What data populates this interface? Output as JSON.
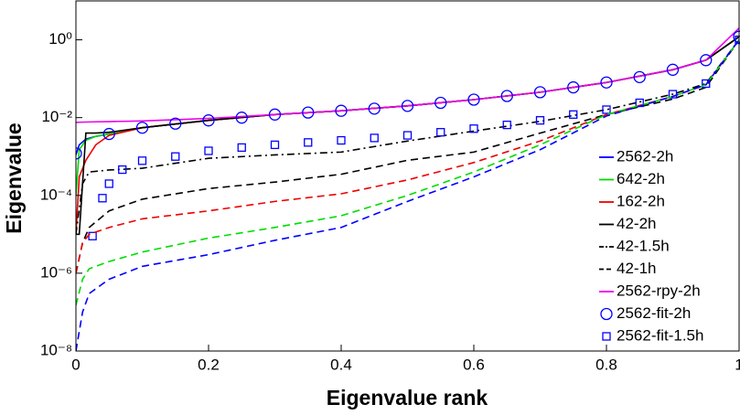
{
  "chart_data": {
    "type": "line",
    "xlabel": "Eigenvalue rank",
    "ylabel": "Eigenvalue",
    "xlim": [
      0,
      1
    ],
    "xticks": [
      0,
      0.2,
      0.4,
      0.6,
      0.8,
      1
    ],
    "ylim": [
      1e-08,
      10
    ],
    "yscale": "log",
    "yticks": [
      {
        "value": 1e-08,
        "label": "10⁻⁸"
      },
      {
        "value": 1e-06,
        "label": "10⁻⁶"
      },
      {
        "value": 0.0001,
        "label": "10⁻⁴"
      },
      {
        "value": 0.01,
        "label": "10⁻²"
      },
      {
        "value": 1,
        "label": "10⁰"
      }
    ],
    "legend": "right",
    "series": [
      {
        "name": "2562-2h",
        "color": "#0000ff",
        "style": "solid",
        "x": [
          0,
          0.005,
          0.015,
          0.03,
          0.05,
          0.1,
          0.2,
          0.3,
          0.4,
          0.5,
          0.6,
          0.7,
          0.8,
          0.9,
          0.95,
          1
        ],
        "values": [
          0.0011,
          0.002,
          0.0028,
          0.0033,
          0.0038,
          0.0055,
          0.0085,
          0.012,
          0.015,
          0.02,
          0.029,
          0.045,
          0.08,
          0.17,
          0.3,
          1.2
        ]
      },
      {
        "name": "642-2h",
        "color": "#00dd00",
        "style": "solid",
        "x": [
          0,
          0.005,
          0.015,
          0.03,
          0.05,
          0.1,
          0.2,
          0.3,
          0.4,
          0.5,
          0.6,
          0.7,
          0.8,
          0.9,
          0.95,
          1
        ],
        "values": [
          0.0001,
          0.0015,
          0.0026,
          0.0033,
          0.0038,
          0.0055,
          0.0085,
          0.012,
          0.015,
          0.02,
          0.029,
          0.045,
          0.08,
          0.17,
          0.3,
          1.2
        ]
      },
      {
        "name": "162-2h",
        "color": "#ee0000",
        "style": "solid",
        "x": [
          0,
          0.005,
          0.015,
          0.03,
          0.05,
          0.1,
          0.2,
          0.3,
          0.4,
          0.5,
          0.6,
          0.7,
          0.8,
          0.9,
          0.95,
          1
        ],
        "values": [
          1e-05,
          0.0003,
          0.0008,
          0.002,
          0.0035,
          0.0055,
          0.0085,
          0.012,
          0.015,
          0.02,
          0.029,
          0.045,
          0.08,
          0.17,
          0.3,
          1.2
        ]
      },
      {
        "name": "42-2h",
        "color": "#000000",
        "style": "solid",
        "x": [
          0,
          0.005,
          0.015,
          0.03,
          0.05,
          0.1,
          0.2,
          0.3,
          0.4,
          0.5,
          0.6,
          0.7,
          0.8,
          0.9,
          0.95,
          1
        ],
        "values": [
          1e-05,
          1e-05,
          0.004,
          0.004,
          0.0042,
          0.0055,
          0.0085,
          0.012,
          0.015,
          0.02,
          0.029,
          0.045,
          0.08,
          0.17,
          0.3,
          1.2
        ]
      },
      {
        "name": "42-1.5h",
        "color": "#000000",
        "style": "dashdot",
        "x": [
          0,
          0.01,
          0.02,
          0.05,
          0.1,
          0.2,
          0.3,
          0.4,
          0.5,
          0.6,
          0.7,
          0.8,
          0.9,
          0.95,
          1
        ],
        "values": [
          1e-05,
          0.0002,
          0.0004,
          0.00045,
          0.0005,
          0.0009,
          0.0011,
          0.0013,
          0.0025,
          0.0045,
          0.008,
          0.016,
          0.04,
          0.075,
          1
        ]
      },
      {
        "name": "42-1h",
        "color": "#000000",
        "style": "dashed",
        "x": [
          0,
          0.01,
          0.02,
          0.05,
          0.1,
          0.2,
          0.3,
          0.4,
          0.5,
          0.6,
          0.7,
          0.8,
          0.9,
          0.95,
          1
        ],
        "values": [
          1e-06,
          6e-06,
          1.5e-05,
          4e-05,
          8e-05,
          0.00015,
          0.00022,
          0.00035,
          0.0008,
          0.0013,
          0.004,
          0.012,
          0.03,
          0.06,
          1
        ]
      },
      {
        "name": "2562-rpy-2h",
        "color": "#ee00ee",
        "style": "solid",
        "x": [
          0,
          0.005,
          0.015,
          0.03,
          0.05,
          0.1,
          0.2,
          0.3,
          0.4,
          0.5,
          0.6,
          0.7,
          0.8,
          0.9,
          0.95,
          1
        ],
        "values": [
          0.0075,
          0.0076,
          0.0077,
          0.0078,
          0.0079,
          0.0082,
          0.0095,
          0.012,
          0.015,
          0.02,
          0.029,
          0.045,
          0.08,
          0.17,
          0.3,
          2
        ]
      },
      {
        "name": "2562-fit-2h",
        "color": "#0000ff",
        "marker": "circle",
        "x": [
          0,
          0.05,
          0.1,
          0.15,
          0.2,
          0.25,
          0.3,
          0.35,
          0.4,
          0.45,
          0.5,
          0.55,
          0.6,
          0.65,
          0.7,
          0.75,
          0.8,
          0.85,
          0.9,
          0.95,
          1
        ],
        "values": [
          0.0012,
          0.0038,
          0.0055,
          0.007,
          0.0085,
          0.01,
          0.012,
          0.0135,
          0.015,
          0.017,
          0.02,
          0.024,
          0.029,
          0.036,
          0.045,
          0.06,
          0.08,
          0.11,
          0.17,
          0.3,
          1.2
        ]
      },
      {
        "name": "2562-fit-1.5h",
        "color": "#0000ff",
        "marker": "square",
        "x": [
          0.025,
          0.04,
          0.05,
          0.07,
          0.1,
          0.15,
          0.2,
          0.25,
          0.3,
          0.35,
          0.4,
          0.45,
          0.5,
          0.55,
          0.6,
          0.65,
          0.7,
          0.75,
          0.8,
          0.85,
          0.9,
          0.95,
          1
        ],
        "values": [
          9e-06,
          8.5e-05,
          0.0002,
          0.00046,
          0.00078,
          0.001,
          0.0014,
          0.0017,
          0.002,
          0.0023,
          0.0026,
          0.003,
          0.0035,
          0.0042,
          0.0052,
          0.0065,
          0.0085,
          0.012,
          0.016,
          0.024,
          0.04,
          0.075,
          1
        ]
      },
      {
        "color": "#ee0000",
        "style": "dashed",
        "x": [
          0,
          0.01,
          0.02,
          0.05,
          0.1,
          0.2,
          0.3,
          0.4,
          0.5,
          0.6,
          0.7,
          0.8,
          0.9,
          0.95,
          1
        ],
        "values": [
          1e-06,
          6e-06,
          1e-05,
          1.5e-05,
          2.5e-05,
          4e-05,
          7e-05,
          0.00011,
          0.00025,
          0.0007,
          0.0025,
          0.012,
          0.035,
          0.07,
          1
        ]
      },
      {
        "color": "#00dd00",
        "style": "dashed",
        "x": [
          0,
          0.01,
          0.02,
          0.05,
          0.1,
          0.2,
          0.3,
          0.4,
          0.5,
          0.6,
          0.7,
          0.8,
          0.9,
          0.95,
          1
        ],
        "values": [
          1.5e-07,
          7e-07,
          1.3e-06,
          2e-06,
          3.5e-06,
          8e-06,
          1.5e-05,
          3e-05,
          0.0001,
          0.0004,
          0.002,
          0.012,
          0.035,
          0.07,
          1
        ]
      },
      {
        "color": "#0000ff",
        "style": "dashed",
        "x": [
          0,
          0.01,
          0.02,
          0.05,
          0.1,
          0.2,
          0.3,
          0.4,
          0.5,
          0.6,
          0.7,
          0.8,
          0.9,
          0.95,
          1
        ],
        "values": [
          1e-08,
          1e-07,
          3e-07,
          7e-07,
          1.5e-06,
          3e-06,
          7e-06,
          1.5e-05,
          7e-05,
          0.0003,
          0.0015,
          0.011,
          0.035,
          0.07,
          1
        ]
      }
    ]
  }
}
